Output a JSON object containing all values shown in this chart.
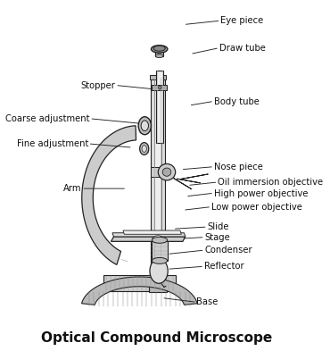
{
  "title": "Optical Compound Microscope",
  "title_fontsize": 11,
  "title_fontweight": "bold",
  "bg_color": "#ffffff",
  "label_fontsize": 7.2,
  "line_color": "#222222",
  "labels_right": {
    "Eye piece": [
      0.68,
      0.95,
      0.55,
      0.94
    ],
    "Draw tube": [
      0.675,
      0.87,
      0.575,
      0.855
    ],
    "Body tube": [
      0.655,
      0.715,
      0.57,
      0.705
    ],
    "Nose piece": [
      0.655,
      0.525,
      0.54,
      0.518
    ],
    "Oil immersion objective": [
      0.67,
      0.48,
      0.565,
      0.472
    ],
    "High power objective": [
      0.655,
      0.448,
      0.558,
      0.44
    ],
    "Low power objective": [
      0.645,
      0.408,
      0.548,
      0.4
    ],
    "Slide": [
      0.63,
      0.35,
      0.51,
      0.345
    ],
    "Stage": [
      0.62,
      0.32,
      0.5,
      0.315
    ],
    "Condenser": [
      0.62,
      0.282,
      0.488,
      0.272
    ],
    "Reflector": [
      0.618,
      0.235,
      0.488,
      0.228
    ],
    "Base": [
      0.59,
      0.132,
      0.468,
      0.143
    ]
  },
  "labels_left": {
    "Stopper": [
      0.285,
      0.762,
      0.422,
      0.752
    ],
    "Coarse adjustment": [
      0.188,
      0.665,
      0.372,
      0.652
    ],
    "Fine adjustment": [
      0.182,
      0.592,
      0.34,
      0.582
    ],
    "Arm": [
      0.158,
      0.462,
      0.318,
      0.462
    ]
  }
}
